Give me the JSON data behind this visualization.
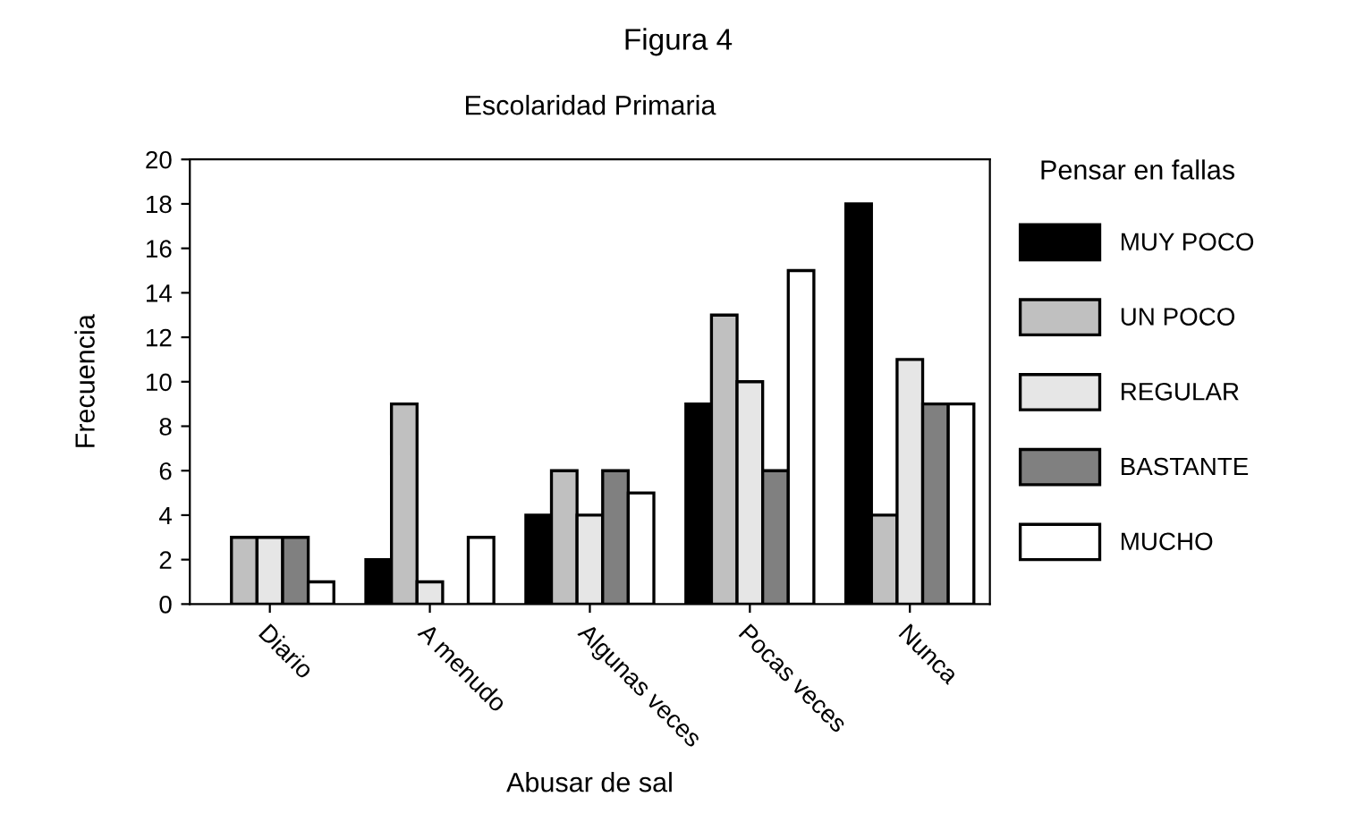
{
  "chart_data": {
    "type": "bar",
    "title": "Figura 4",
    "subtitle": "Escolaridad Primaria",
    "xlabel": "Abusar de sal",
    "ylabel": "Frecuencia",
    "legend_title": "Pensar en fallas",
    "categories": [
      "Diario",
      "A menudo",
      "Algunas veces",
      "Pocas veces",
      "Nunca"
    ],
    "series": [
      {
        "name": "MUY POCO",
        "color": "#000000",
        "values": [
          0,
          2,
          4,
          9,
          18
        ]
      },
      {
        "name": "UN POCO",
        "color": "#c0c0c0",
        "values": [
          3,
          9,
          6,
          13,
          4
        ]
      },
      {
        "name": "REGULAR",
        "color": "#e6e6e6",
        "values": [
          3,
          1,
          4,
          10,
          11
        ]
      },
      {
        "name": "BASTANTE",
        "color": "#808080",
        "values": [
          3,
          0,
          6,
          6,
          9
        ]
      },
      {
        "name": "MUCHO",
        "color": "#ffffff",
        "values": [
          1,
          3,
          5,
          15,
          9
        ]
      }
    ],
    "ylim": [
      0,
      20
    ],
    "yticks": [
      0,
      2,
      4,
      6,
      8,
      10,
      12,
      14,
      16,
      18,
      20
    ],
    "grid": false,
    "legend": "right"
  }
}
